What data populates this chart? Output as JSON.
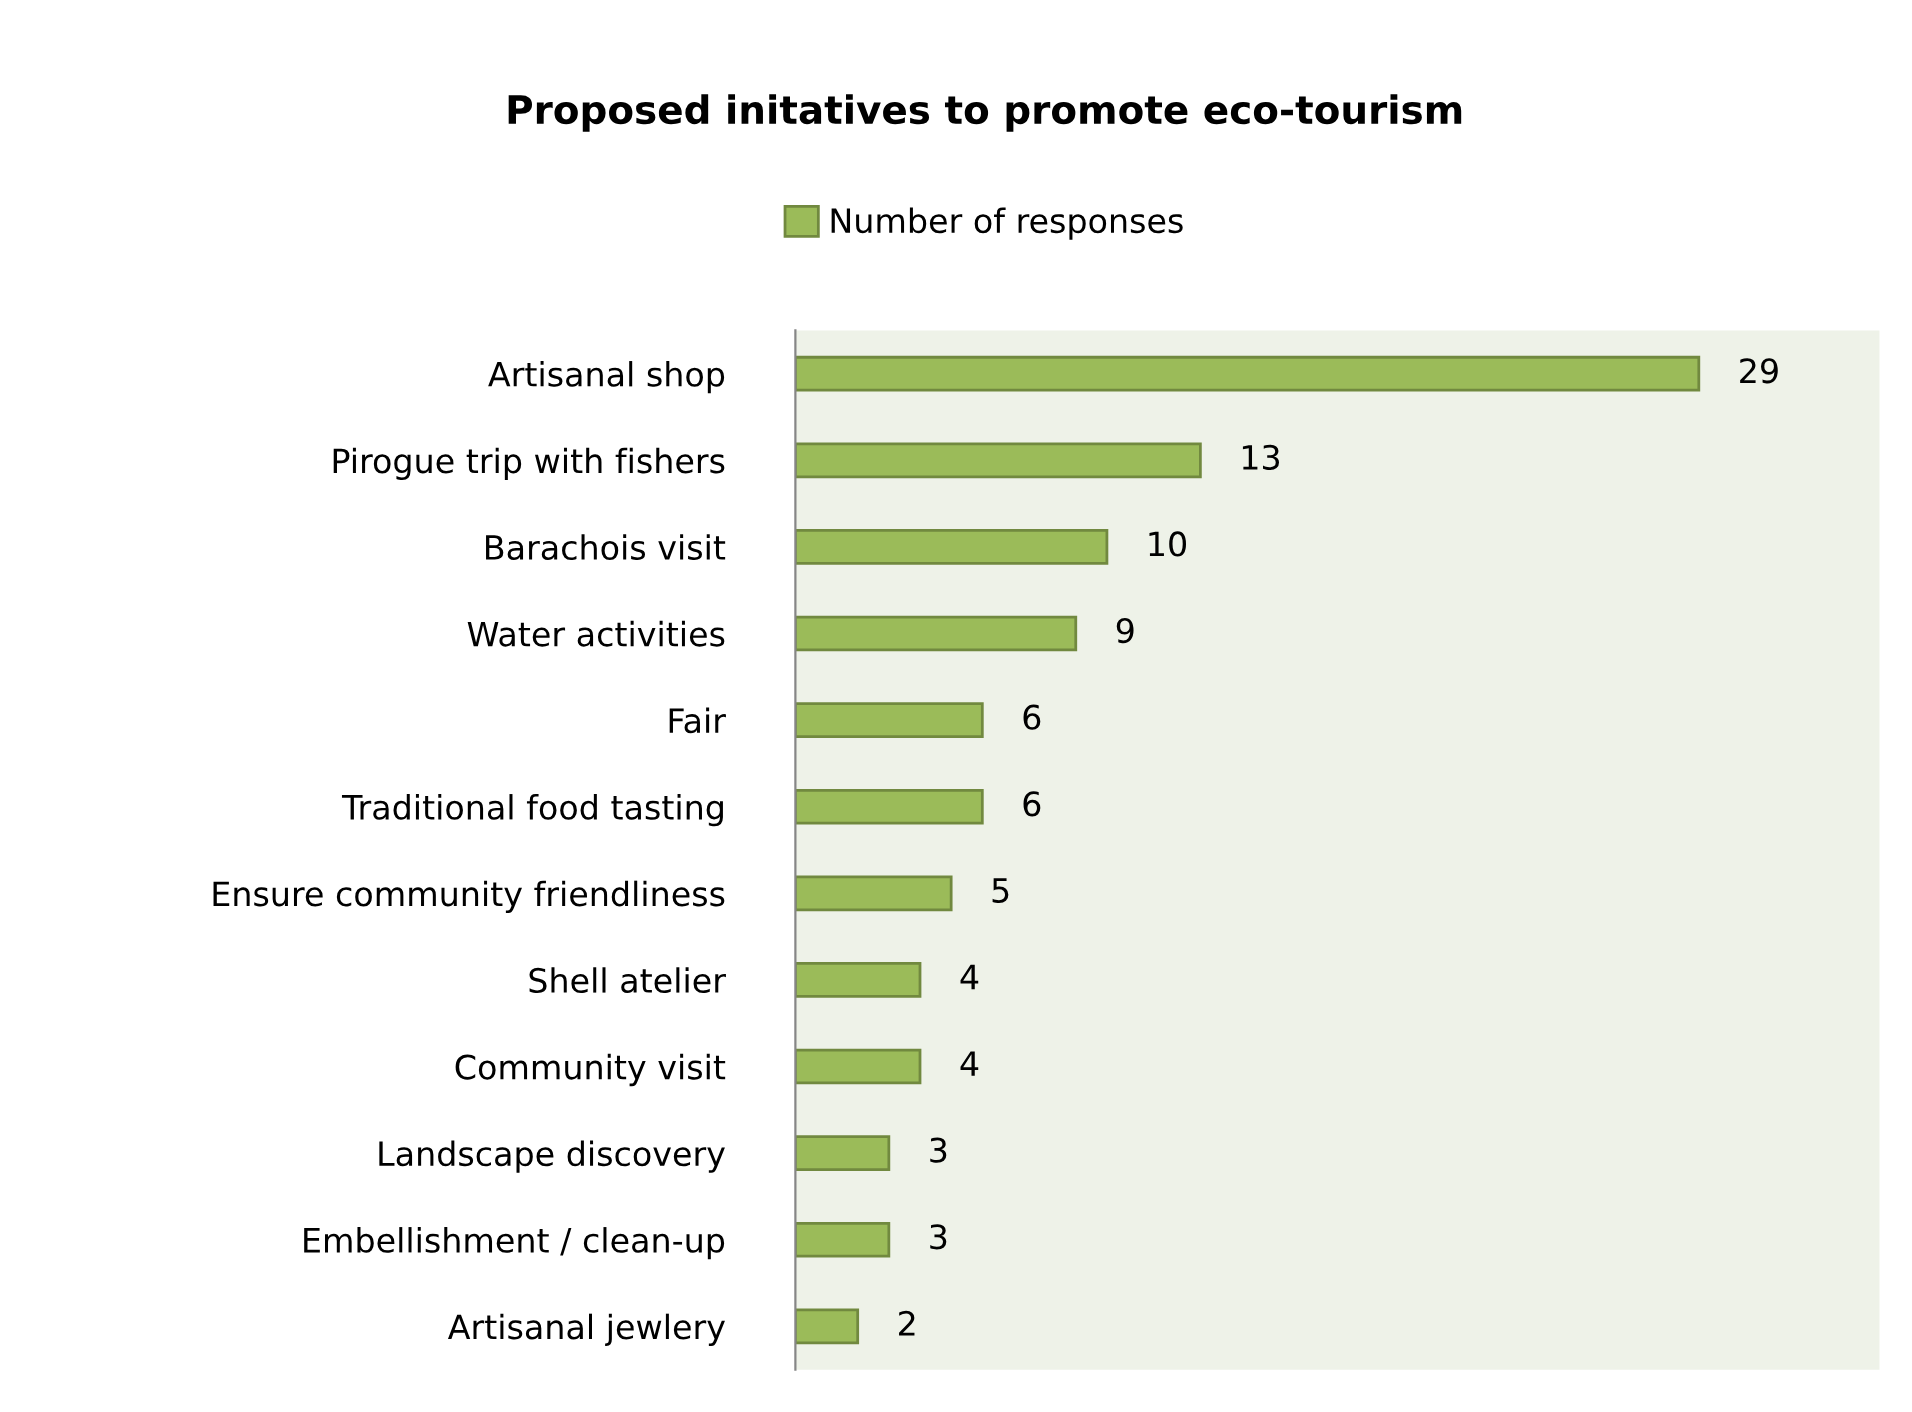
{
  "chart_data": {
    "type": "bar",
    "orientation": "horizontal",
    "title": "Proposed initatives to promote eco-tourism",
    "categories": [
      "Artisanal shop",
      "Pirogue trip with fishers",
      "Barachois visit",
      "Water activities",
      "Fair",
      "Traditional food tasting",
      "Ensure community friendliness",
      "Shell atelier",
      "Community visit",
      "Landscape discovery",
      "Embellishment / clean-up",
      "Artisanal jewlery"
    ],
    "series": [
      {
        "name": "Number of responses",
        "color": "#9bbb59",
        "values": [
          29,
          13,
          10,
          9,
          6,
          6,
          5,
          4,
          4,
          3,
          3,
          2
        ]
      }
    ],
    "data_labels": true,
    "legend": "top",
    "grid": false
  }
}
